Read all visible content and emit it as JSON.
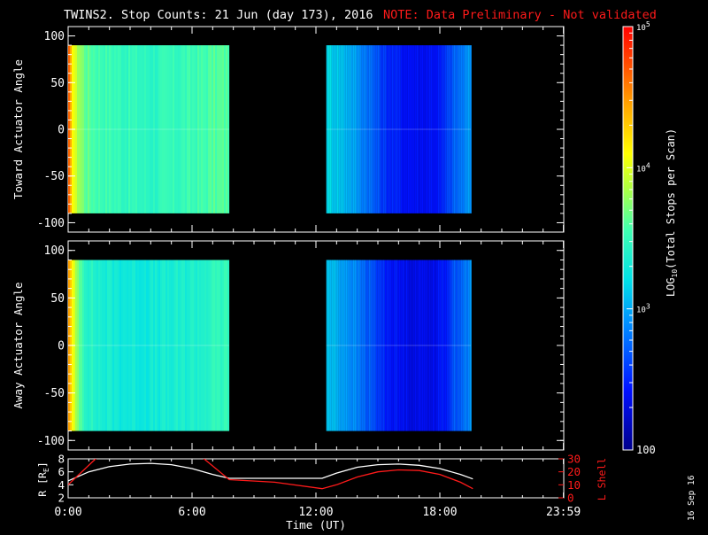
{
  "title": {
    "main": "TWINS2. Stop Counts: 21 Jun (day 173), 2016",
    "note": "NOTE: Data Preliminary - Not validated"
  },
  "colorbar": {
    "label_prefix": "LOG",
    "label_sub": "10",
    "label_suffix": "(Total Stops per Scan)",
    "scale": "log",
    "range": [
      100,
      100000
    ],
    "ticks": [
      {
        "value": 100000,
        "base": "10",
        "exp": "5"
      },
      {
        "value": 10000,
        "base": "10",
        "exp": "4"
      },
      {
        "value": 1000,
        "base": "10",
        "exp": "3"
      },
      {
        "value": 100,
        "base": "100",
        "exp": ""
      }
    ]
  },
  "date_stamp": "16 Sep 16",
  "colors": {
    "orange": "#ff7a00",
    "yellow": "#e6ff32",
    "green": "#9aff5a",
    "cyan": "#1ed4e8",
    "blue": "#0040ff",
    "deep_blue": "#0000b4",
    "line_r": "#ffffff",
    "line_lshell": "#ff1a1a"
  },
  "chart_data": [
    {
      "type": "heatmap",
      "name": "toward",
      "ylabel": "Toward Actuator Angle",
      "ylim": [
        -110,
        110
      ],
      "yticks": [
        "100",
        "50",
        "0",
        "-50",
        "-100"
      ],
      "ytick_values": [
        100,
        50,
        0,
        -50,
        -100
      ],
      "xlim": [
        0,
        24
      ],
      "angle_range": [
        -90,
        90
      ],
      "segments": [
        {
          "start_hour": 0.0,
          "end_hour": 7.8,
          "profile": [
            [
              0.0,
              4.6
            ],
            [
              0.15,
              4.2
            ],
            [
              0.35,
              3.9
            ],
            [
              0.8,
              3.65
            ],
            [
              1.5,
              3.55
            ],
            [
              2.5,
              3.5
            ],
            [
              4.0,
              3.45
            ],
            [
              5.5,
              3.5
            ],
            [
              6.5,
              3.55
            ],
            [
              7.0,
              3.6
            ],
            [
              7.8,
              3.6
            ]
          ]
        },
        {
          "start_hour": 12.5,
          "end_hour": 19.5,
          "profile": [
            [
              12.5,
              3.2
            ],
            [
              13.5,
              3.05
            ],
            [
              14.5,
              2.8
            ],
            [
              15.3,
              2.55
            ],
            [
              16.0,
              2.45
            ],
            [
              17.0,
              2.4
            ],
            [
              18.0,
              2.45
            ],
            [
              18.6,
              2.7
            ],
            [
              19.5,
              2.95
            ]
          ]
        }
      ]
    },
    {
      "type": "heatmap",
      "name": "away",
      "ylabel": "Away Actuator Angle",
      "ylim": [
        -110,
        110
      ],
      "yticks": [
        "100",
        "50",
        "0",
        "-50",
        "-100"
      ],
      "ytick_values": [
        100,
        50,
        0,
        -50,
        -100
      ],
      "xlim": [
        0,
        24
      ],
      "angle_range": [
        -90,
        90
      ],
      "segments": [
        {
          "start_hour": 0.0,
          "end_hour": 7.8,
          "profile": [
            [
              0.0,
              4.5
            ],
            [
              0.15,
              4.1
            ],
            [
              0.35,
              3.8
            ],
            [
              0.8,
              3.45
            ],
            [
              1.5,
              3.35
            ],
            [
              2.5,
              3.3
            ],
            [
              4.0,
              3.3
            ],
            [
              5.5,
              3.35
            ],
            [
              6.5,
              3.4
            ],
            [
              7.0,
              3.45
            ],
            [
              7.8,
              3.5
            ]
          ]
        },
        {
          "start_hour": 12.5,
          "end_hour": 19.5,
          "profile": [
            [
              12.5,
              3.1
            ],
            [
              13.5,
              2.95
            ],
            [
              14.5,
              2.7
            ],
            [
              15.3,
              2.5
            ],
            [
              16.0,
              2.4
            ],
            [
              17.0,
              2.35
            ],
            [
              18.0,
              2.4
            ],
            [
              18.6,
              2.65
            ],
            [
              19.5,
              2.9
            ]
          ]
        }
      ]
    },
    {
      "type": "line",
      "name": "orbit",
      "xlabel": "Time (UT)",
      "xlim": [
        0,
        24
      ],
      "xticks": [
        0,
        6,
        12,
        18,
        23.983
      ],
      "xtick_labels": [
        "0:00",
        "6:00",
        "12:00",
        "18:00",
        "23:59"
      ],
      "ylabel_left": "R [R",
      "ylabel_left_sub": "E",
      "ylabel_left_suffix": "]",
      "ylim_left": [
        2,
        8
      ],
      "yticks_left": [
        "8",
        "6",
        "4",
        "2"
      ],
      "ytick_values_left": [
        8,
        6,
        4,
        2
      ],
      "ylabel_right": "L Shell",
      "ylim_right": [
        0,
        30
      ],
      "yticks_right": [
        "30",
        "20",
        "10",
        "0"
      ],
      "ytick_values_right": [
        30,
        20,
        10,
        0
      ],
      "series": [
        {
          "axis": "left",
          "points": [
            [
              0,
              4.6
            ],
            [
              1,
              6.0
            ],
            [
              2,
              6.8
            ],
            [
              3,
              7.2
            ],
            [
              4,
              7.3
            ],
            [
              5,
              7.1
            ],
            [
              6,
              6.5
            ],
            [
              7,
              5.6
            ],
            [
              7.8,
              5.0
            ],
            [
              10,
              5.0
            ],
            [
              12.3,
              5.0
            ],
            [
              13,
              5.8
            ],
            [
              14,
              6.7
            ],
            [
              15,
              7.1
            ],
            [
              16,
              7.2
            ],
            [
              17,
              7.0
            ],
            [
              18,
              6.5
            ],
            [
              19,
              5.6
            ],
            [
              19.6,
              4.9
            ]
          ]
        },
        {
          "axis": "right",
          "points": [
            [
              0,
              10
            ],
            [
              1.2,
              28
            ],
            [
              1.4,
              31
            ],
            [
              6.5,
              31
            ],
            [
              7.8,
              14
            ],
            [
              10,
              12
            ],
            [
              12.3,
              7
            ],
            [
              13,
              10
            ],
            [
              14,
              16
            ],
            [
              15,
              20
            ],
            [
              16,
              21.5
            ],
            [
              17,
              21
            ],
            [
              18,
              18
            ],
            [
              19,
              12
            ],
            [
              19.6,
              7
            ]
          ]
        }
      ]
    }
  ]
}
